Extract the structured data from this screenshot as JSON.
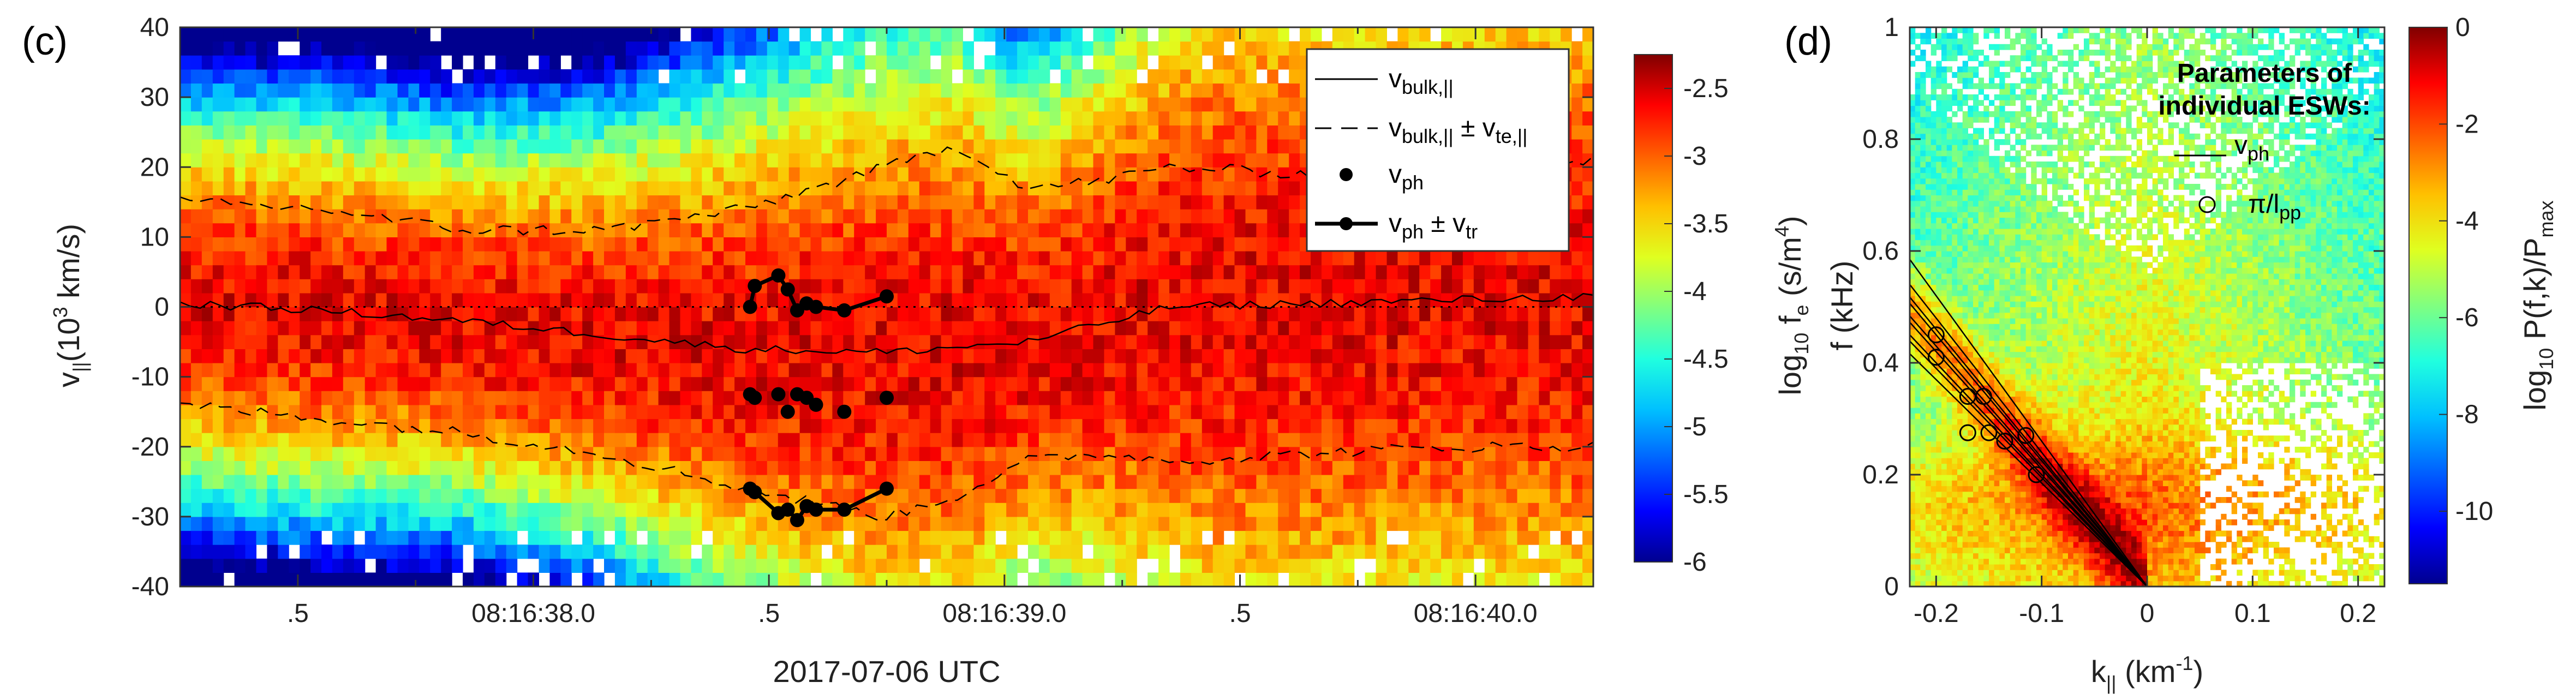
{
  "colors": {
    "jet": [
      "#00008f",
      "#0000ff",
      "#0060ff",
      "#00c0ff",
      "#20ffdf",
      "#80ff80",
      "#dfff20",
      "#ffc000",
      "#ff6000",
      "#ff0000",
      "#800000"
    ]
  },
  "chart_data": [
    {
      "panel": "(c)",
      "type": "heatmap",
      "xlabel": "2017-07-06 UTC",
      "ylabel_main": "v",
      "ylabel_sub": "||",
      "ylabel_unit_pre": "(10",
      "ylabel_unit_sup": "3",
      "ylabel_unit_post": " km/s)",
      "ylim": [
        -40,
        40
      ],
      "yticks": [
        -40,
        -30,
        -20,
        -10,
        0,
        10,
        20,
        30,
        40
      ],
      "xlim": [
        0,
        3.0
      ],
      "xticks": [
        0.25,
        0.75,
        1.25,
        1.75,
        2.25,
        2.75
      ],
      "xticklabels": [
        ".5",
        "08:16:38.0",
        ".5",
        "08:16:39.0",
        ".5",
        "08:16:40.0"
      ],
      "colorbar": {
        "range": [
          -6,
          -2.25
        ],
        "ticks": [
          -6,
          -5.5,
          -5,
          -4.5,
          -4,
          -3.5,
          -3,
          -2.5
        ],
        "ticklabels": [
          "-6",
          "-5.5",
          "-5",
          "-4.5",
          "-4",
          "-3.5",
          "-3",
          "-2.5"
        ],
        "label_main": "log",
        "label_sub": "10",
        "label_mid": " f",
        "label_sub2": "e",
        "label_unit": " (s/m",
        "label_unit_sup": "4",
        "label_close": ")"
      },
      "v_bulk": [
        [
          0.0,
          0.5
        ],
        [
          0.3,
          -0.5
        ],
        [
          0.6,
          -2.0
        ],
        [
          0.9,
          -4.0
        ],
        [
          1.2,
          -6.0
        ],
        [
          1.5,
          -6.5
        ],
        [
          1.8,
          -5.0
        ],
        [
          1.95,
          -2.5
        ],
        [
          2.1,
          0.0
        ],
        [
          2.4,
          0.5
        ],
        [
          2.7,
          1.0
        ],
        [
          3.0,
          1.5
        ]
      ],
      "v_upper": [
        [
          0.0,
          15.0
        ],
        [
          0.3,
          14.0
        ],
        [
          0.6,
          11.0
        ],
        [
          0.9,
          11.0
        ],
        [
          1.2,
          14.0
        ],
        [
          1.5,
          20.0
        ],
        [
          1.65,
          23.0
        ],
        [
          1.8,
          17.0
        ],
        [
          1.95,
          18.0
        ],
        [
          2.1,
          20.0
        ],
        [
          2.4,
          19.0
        ],
        [
          2.7,
          19.0
        ],
        [
          3.0,
          21.0
        ]
      ],
      "v_lower": [
        [
          0.0,
          -14.0
        ],
        [
          0.3,
          -16.0
        ],
        [
          0.6,
          -18.0
        ],
        [
          0.9,
          -21.0
        ],
        [
          1.2,
          -26.0
        ],
        [
          1.5,
          -30.0
        ],
        [
          1.65,
          -27.0
        ],
        [
          1.8,
          -22.0
        ],
        [
          1.95,
          -21.0
        ],
        [
          2.1,
          -22.0
        ],
        [
          2.4,
          -21.0
        ],
        [
          2.7,
          -20.0
        ],
        [
          3.0,
          -20.0
        ]
      ],
      "v_ph": [
        [
          1.21,
          -12.5
        ],
        [
          1.22,
          -13.0
        ],
        [
          1.27,
          -12.5
        ],
        [
          1.29,
          -15.0
        ],
        [
          1.31,
          -12.5
        ],
        [
          1.33,
          -13.0
        ],
        [
          1.35,
          -14.0
        ],
        [
          1.41,
          -15.0
        ],
        [
          1.5,
          -13.0
        ]
      ],
      "v_ph_plus_trapping": [
        [
          1.21,
          0.0
        ],
        [
          1.22,
          3.0
        ],
        [
          1.27,
          4.5
        ],
        [
          1.29,
          2.5
        ],
        [
          1.31,
          -0.5
        ],
        [
          1.33,
          0.5
        ],
        [
          1.35,
          0.0
        ],
        [
          1.41,
          -0.5
        ],
        [
          1.5,
          1.5
        ]
      ],
      "v_ph_minus_trapping": [
        [
          1.21,
          -26.0
        ],
        [
          1.22,
          -26.5
        ],
        [
          1.27,
          -29.5
        ],
        [
          1.29,
          -29.0
        ],
        [
          1.31,
          -30.5
        ],
        [
          1.33,
          -28.5
        ],
        [
          1.35,
          -29.0
        ],
        [
          1.41,
          -29.0
        ],
        [
          1.5,
          -26.0
        ]
      ],
      "legend": {
        "entries": [
          {
            "main": "v",
            "sub": "bulk,||",
            "tail": ""
          },
          {
            "main": "v",
            "sub": "bulk,||",
            "tail": " ± v",
            "tail_sub": "te,||"
          },
          {
            "main": "v",
            "sub": "ph",
            "tail": ""
          },
          {
            "main": "v",
            "sub": "ph",
            "tail": " ± v",
            "tail_sub": "tr"
          }
        ],
        "placement": "top-right"
      }
    },
    {
      "panel": "(d)",
      "type": "heatmap",
      "xlabel_main": "k",
      "xlabel_sub": "||",
      "xlabel_unit": " (km",
      "xlabel_unit_sup": "-1",
      "xlabel_close": ")",
      "ylabel": "f (kHz)",
      "xlim": [
        -0.225,
        0.225
      ],
      "xticks": [
        -0.2,
        -0.1,
        0,
        0.1,
        0.2
      ],
      "xticklabels": [
        "-0.2",
        "-0.1",
        "0",
        "0.1",
        "0.2"
      ],
      "ylim": [
        0,
        1
      ],
      "yticks": [
        0,
        0.2,
        0.4,
        0.6,
        0.8,
        1
      ],
      "yticklabels": [
        "0",
        "0.2",
        "0.4",
        "0.6",
        "0.8",
        "1"
      ],
      "colorbar": {
        "range": [
          -11.5,
          0
        ],
        "ticks": [
          0,
          -2,
          -4,
          -6,
          -8,
          -10
        ],
        "ticklabels": [
          "0",
          "-2",
          "-4",
          "-6",
          "-8",
          "-10"
        ],
        "label_main": "log",
        "label_sub": "10",
        "label_mid": " P(f,k)/P",
        "label_sub2": "max"
      },
      "annotation": {
        "title_line1": "Parameters of",
        "title_line2": "individual ESWs:",
        "line_label_main": "v",
        "line_label_sub": "ph",
        "circle_label_main": "π/l",
        "circle_label_sub": "pp"
      },
      "vph_line_slopes": [
        -2.25,
        -2.1,
        -2.0,
        -1.95,
        -2.4,
        -2.6,
        -1.85,
        -2.3,
        -2.15
      ],
      "circles": [
        [
          -0.2,
          0.45
        ],
        [
          -0.2,
          0.41
        ],
        [
          -0.17,
          0.34
        ],
        [
          -0.155,
          0.34
        ],
        [
          -0.17,
          0.275
        ],
        [
          -0.135,
          0.26
        ],
        [
          -0.115,
          0.27
        ],
        [
          -0.105,
          0.2
        ],
        [
          -0.15,
          0.275
        ]
      ]
    }
  ]
}
